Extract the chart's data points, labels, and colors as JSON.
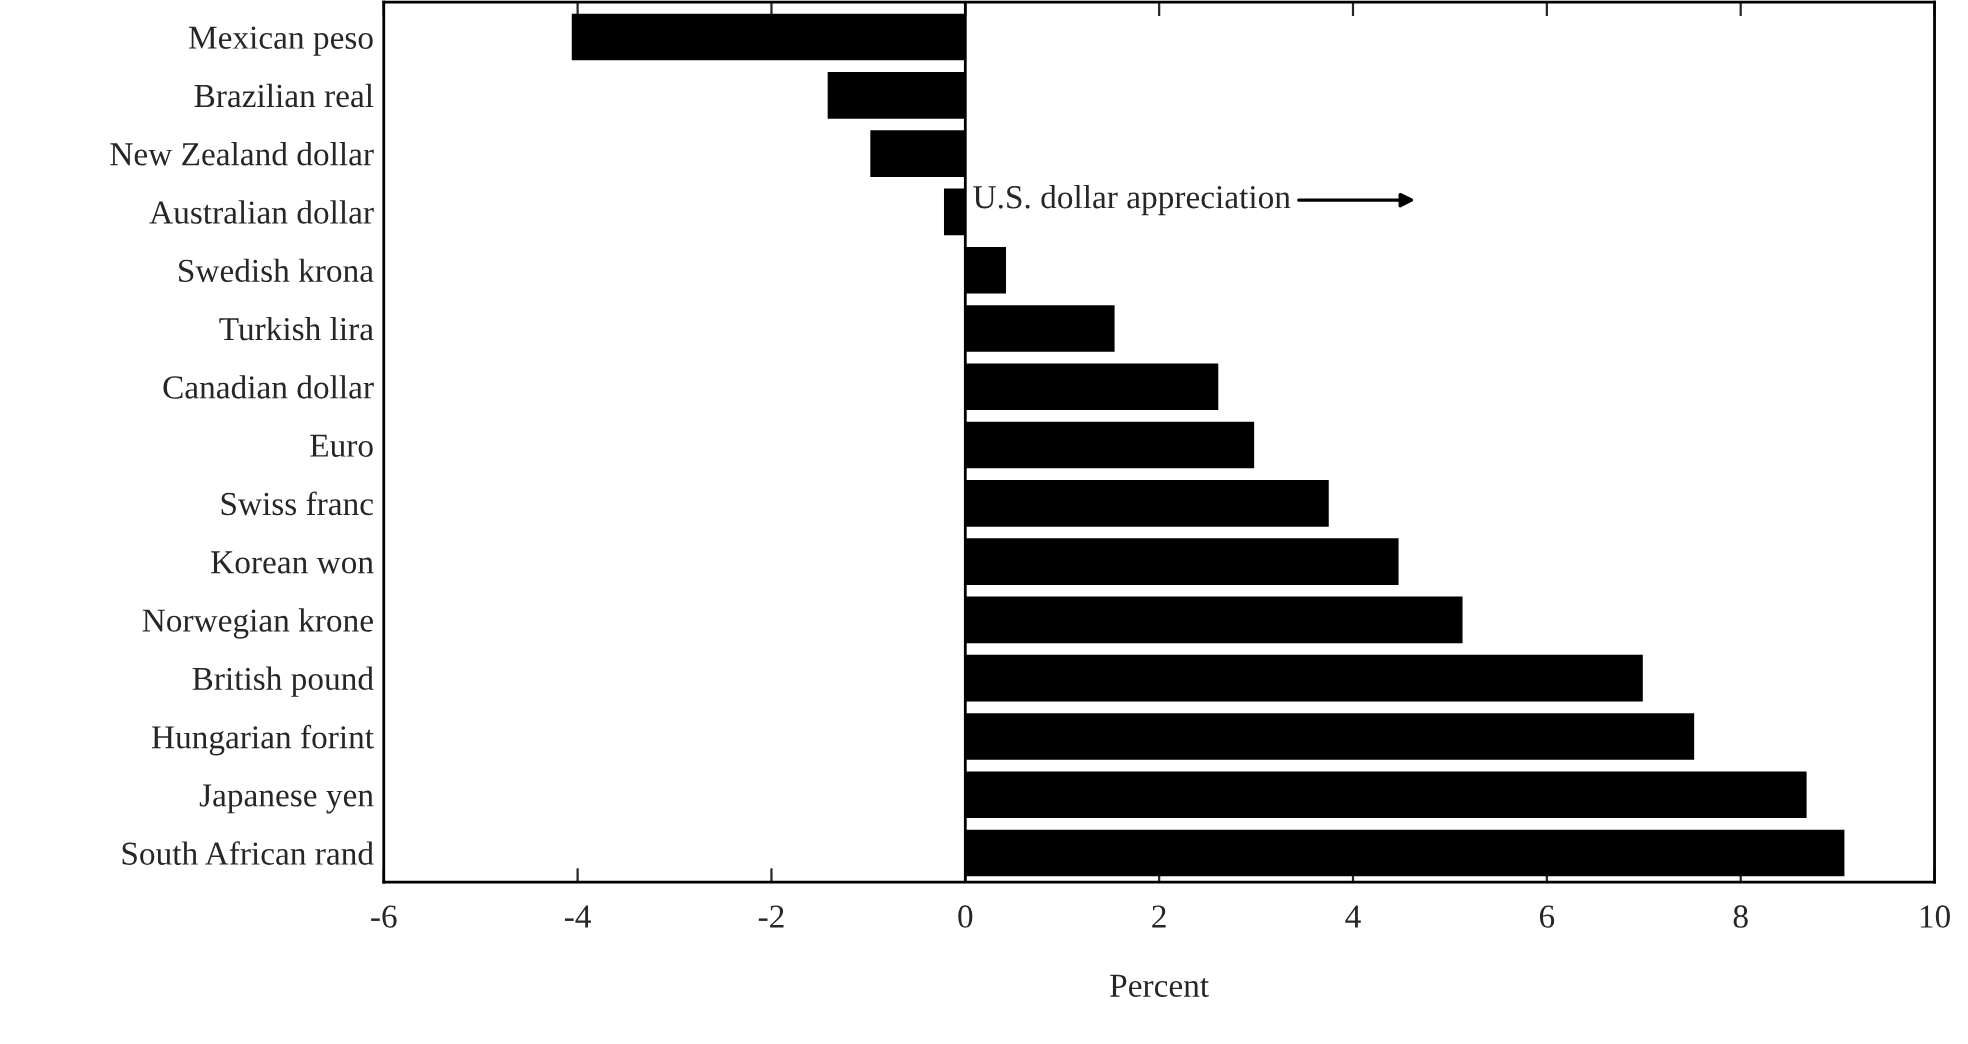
{
  "chart_data": {
    "type": "bar",
    "orientation": "horizontal",
    "xlabel": "Percent",
    "categories": [
      "Mexican peso",
      "Brazilian real",
      "New Zealand dollar",
      "Australian dollar",
      "Swedish krona",
      "Turkish lira",
      "Canadian dollar",
      "Euro",
      "Swiss franc",
      "Korean won",
      "Norwegian krone",
      "British pound",
      "Hungarian forint",
      "Japanese yen",
      "South African rand"
    ],
    "values": [
      -4.06,
      -1.42,
      -0.98,
      -0.22,
      0.42,
      1.54,
      2.61,
      2.98,
      3.75,
      4.47,
      5.13,
      6.99,
      7.52,
      8.68,
      9.07
    ],
    "color": "#000000",
    "xlim": [
      -6,
      10
    ],
    "xticks": [
      -6,
      -4,
      -2,
      0,
      2,
      4,
      6,
      8,
      10
    ],
    "annotations": [
      "U.S. dollar appreciation"
    ],
    "ref_lines": [
      {
        "axis": "x",
        "value": 0
      }
    ],
    "grid": false
  }
}
